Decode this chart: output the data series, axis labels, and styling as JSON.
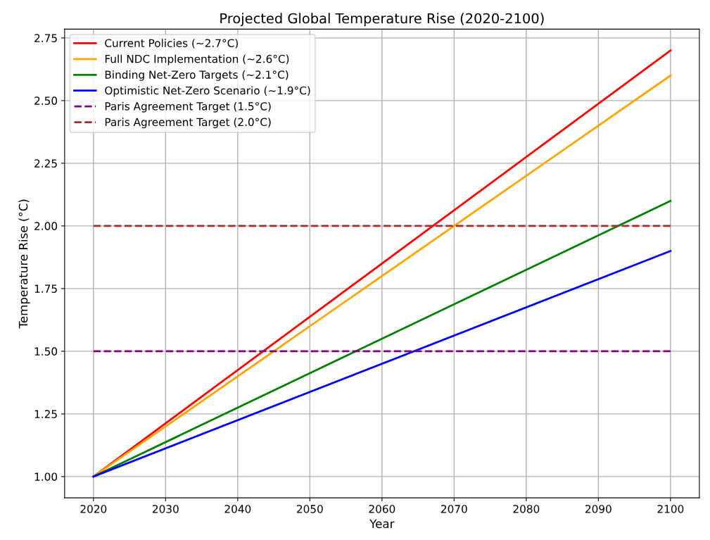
{
  "chart_data": {
    "type": "line",
    "title": "Projected Global Temperature Rise (2020-2100)",
    "xlabel": "Year",
    "ylabel": "Temperature Rise (°C)",
    "x": [
      2020,
      2100
    ],
    "series": [
      {
        "name": "Current Policies (~2.7°C)",
        "color": "#ff0000",
        "values": [
          1.0,
          2.7
        ]
      },
      {
        "name": "Full NDC Implementation (~2.6°C)",
        "color": "#ffa500",
        "values": [
          1.0,
          2.6
        ]
      },
      {
        "name": "Binding Net-Zero Targets (~2.1°C)",
        "color": "#008000",
        "values": [
          1.0,
          2.1
        ]
      },
      {
        "name": "Optimistic Net-Zero Scenario (~1.9°C)",
        "color": "#0000ff",
        "values": [
          1.0,
          1.9
        ]
      }
    ],
    "ref_lines": [
      {
        "axis": "y",
        "value": 1.5,
        "label": "Paris Agreement Target (1.5°C)",
        "color": "#800080",
        "line_style": "dashed"
      },
      {
        "axis": "y",
        "value": 2.0,
        "label": "Paris Agreement Target (2.0°C)",
        "color": "#a52a2a",
        "line_style": "dashed"
      }
    ],
    "xlim": [
      2016,
      2104
    ],
    "ylim": [
      0.915,
      2.785
    ],
    "xticks": [
      2020,
      2030,
      2040,
      2050,
      2060,
      2070,
      2080,
      2090,
      2100
    ],
    "yticks": [
      {
        "value": 1.0,
        "label": "1.00"
      },
      {
        "value": 1.25,
        "label": "1.25"
      },
      {
        "value": 1.5,
        "label": "1.50"
      },
      {
        "value": 1.75,
        "label": "1.75"
      },
      {
        "value": 2.0,
        "label": "2.00"
      },
      {
        "value": 2.25,
        "label": "2.25"
      },
      {
        "value": 2.5,
        "label": "2.50"
      },
      {
        "value": 2.75,
        "label": "2.75"
      }
    ],
    "grid": true,
    "legend": "top left",
    "line_style": "solid",
    "marker": "none"
  }
}
